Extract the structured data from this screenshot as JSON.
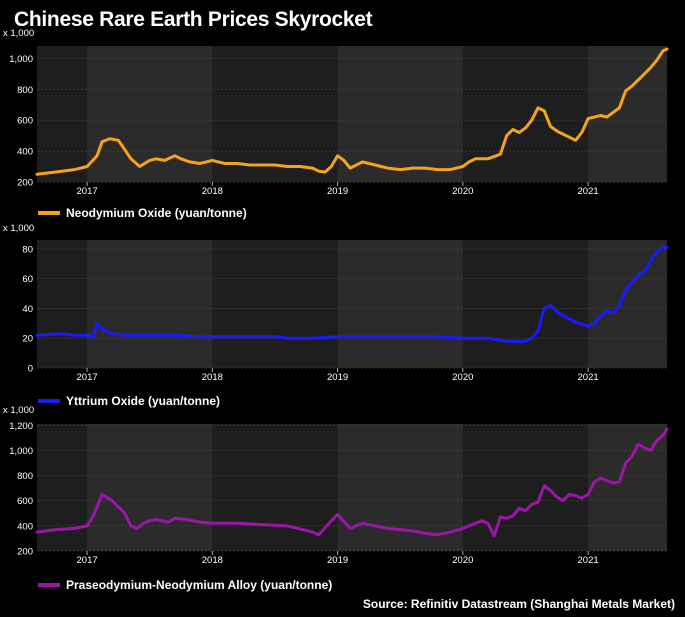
{
  "title": "Chinese Rare Earth Prices Skyrocket",
  "source": "Source: Refinitiv Datastream (Shanghai Metals Market)",
  "chart_data": [
    {
      "type": "line",
      "multiplier_label": "x 1,000",
      "yticks": [
        200,
        400,
        600,
        800,
        1000
      ],
      "ylim": [
        200,
        1080
      ],
      "xlim": [
        2016.6,
        2021.63
      ],
      "xticks": [
        2017,
        2018,
        2019,
        2020,
        2021
      ],
      "shaded_years": [
        2017,
        2019,
        2021
      ],
      "legend_position": "below",
      "series": [
        {
          "name": "Neodymium Oxide (yuan/tonne)",
          "color": "#f5a31a",
          "x": [
            2016.6,
            2016.75,
            2016.9,
            2017.0,
            2017.08,
            2017.12,
            2017.18,
            2017.25,
            2017.3,
            2017.35,
            2017.42,
            2017.5,
            2017.55,
            2017.62,
            2017.7,
            2017.75,
            2017.82,
            2017.9,
            2018.0,
            2018.1,
            2018.2,
            2018.3,
            2018.4,
            2018.5,
            2018.6,
            2018.7,
            2018.8,
            2018.85,
            2018.9,
            2018.95,
            2019.0,
            2019.05,
            2019.1,
            2019.15,
            2019.2,
            2019.3,
            2019.4,
            2019.5,
            2019.6,
            2019.7,
            2019.8,
            2019.9,
            2020.0,
            2020.05,
            2020.1,
            2020.2,
            2020.3,
            2020.35,
            2020.4,
            2020.45,
            2020.5,
            2020.55,
            2020.6,
            2020.65,
            2020.7,
            2020.75,
            2020.8,
            2020.85,
            2020.9,
            2020.95,
            2021.0,
            2021.05,
            2021.1,
            2021.15,
            2021.2,
            2021.25,
            2021.3,
            2021.35,
            2021.4,
            2021.45,
            2021.5,
            2021.55,
            2021.6,
            2021.63
          ],
          "values": [
            250,
            265,
            280,
            300,
            370,
            460,
            480,
            470,
            410,
            350,
            300,
            340,
            350,
            340,
            370,
            350,
            330,
            320,
            340,
            320,
            320,
            310,
            310,
            310,
            300,
            300,
            290,
            270,
            265,
            300,
            370,
            340,
            290,
            310,
            330,
            310,
            290,
            280,
            290,
            290,
            280,
            280,
            300,
            330,
            350,
            350,
            380,
            500,
            540,
            520,
            550,
            600,
            680,
            660,
            560,
            530,
            510,
            490,
            470,
            520,
            610,
            620,
            630,
            620,
            650,
            680,
            790,
            820,
            860,
            900,
            940,
            990,
            1050,
            1060
          ]
        }
      ]
    },
    {
      "type": "line",
      "multiplier_label": "x 1,000",
      "yticks": [
        0,
        20,
        40,
        60,
        80
      ],
      "ylim": [
        0,
        86
      ],
      "xlim": [
        2016.6,
        2021.63
      ],
      "xticks": [
        2017,
        2018,
        2019,
        2020,
        2021
      ],
      "shaded_years": [
        2017,
        2019,
        2021
      ],
      "legend_position": "below",
      "series": [
        {
          "name": "Yttrium Oxide (yuan/tonne)",
          "color": "#1a1aff",
          "x": [
            2016.6,
            2016.8,
            2016.9,
            2017.0,
            2017.05,
            2017.08,
            2017.12,
            2017.2,
            2017.3,
            2017.5,
            2017.7,
            2017.9,
            2018.0,
            2018.2,
            2018.5,
            2018.6,
            2018.8,
            2019.0,
            2019.2,
            2019.5,
            2019.8,
            2020.0,
            2020.2,
            2020.35,
            2020.45,
            2020.5,
            2020.55,
            2020.6,
            2020.65,
            2020.7,
            2020.75,
            2020.8,
            2020.9,
            2021.0,
            2021.05,
            2021.1,
            2021.15,
            2021.2,
            2021.25,
            2021.3,
            2021.35,
            2021.4,
            2021.45,
            2021.5,
            2021.55,
            2021.6,
            2021.63
          ],
          "values": [
            22,
            23,
            22,
            22,
            21,
            30,
            26,
            23,
            22,
            22,
            22,
            21,
            21,
            21,
            21,
            20,
            20,
            21,
            21,
            21,
            21,
            20,
            20,
            18,
            18,
            18,
            20,
            25,
            40,
            42,
            38,
            35,
            31,
            28,
            30,
            35,
            38,
            37,
            42,
            52,
            58,
            62,
            65,
            72,
            78,
            81,
            81
          ]
        }
      ]
    },
    {
      "type": "line",
      "multiplier_label": "x 1,000",
      "yticks": [
        200,
        400,
        600,
        800,
        1000,
        1200
      ],
      "ylim": [
        200,
        1210
      ],
      "xlim": [
        2016.6,
        2021.63
      ],
      "xticks": [
        2017,
        2018,
        2019,
        2020,
        2021
      ],
      "shaded_years": [
        2017,
        2019,
        2021
      ],
      "legend_position": "below",
      "series": [
        {
          "name": "Praseodymium-Neodymium Alloy (yuan/tonne)",
          "color": "#9b16a8",
          "x": [
            2016.6,
            2016.75,
            2016.9,
            2017.0,
            2017.05,
            2017.12,
            2017.2,
            2017.3,
            2017.35,
            2017.4,
            2017.45,
            2017.5,
            2017.55,
            2017.65,
            2017.7,
            2017.8,
            2017.9,
            2018.0,
            2018.2,
            2018.4,
            2018.6,
            2018.8,
            2018.85,
            2018.95,
            2019.0,
            2019.1,
            2019.2,
            2019.3,
            2019.4,
            2019.5,
            2019.6,
            2019.7,
            2019.8,
            2019.9,
            2020.0,
            2020.1,
            2020.15,
            2020.2,
            2020.25,
            2020.3,
            2020.35,
            2020.4,
            2020.45,
            2020.5,
            2020.55,
            2020.6,
            2020.65,
            2020.7,
            2020.75,
            2020.8,
            2020.85,
            2020.9,
            2020.95,
            2021.0,
            2021.05,
            2021.1,
            2021.15,
            2021.2,
            2021.25,
            2021.3,
            2021.35,
            2021.4,
            2021.45,
            2021.5,
            2021.55,
            2021.6,
            2021.63
          ],
          "values": [
            350,
            370,
            380,
            400,
            480,
            650,
            600,
            500,
            400,
            380,
            420,
            440,
            450,
            430,
            460,
            450,
            430,
            420,
            420,
            410,
            400,
            350,
            330,
            440,
            490,
            380,
            420,
            400,
            380,
            370,
            360,
            340,
            330,
            350,
            380,
            420,
            440,
            420,
            320,
            470,
            460,
            480,
            540,
            520,
            570,
            590,
            720,
            680,
            630,
            600,
            650,
            640,
            620,
            650,
            750,
            780,
            760,
            740,
            750,
            900,
            950,
            1050,
            1020,
            1000,
            1080,
            1120,
            1170
          ]
        }
      ]
    }
  ]
}
